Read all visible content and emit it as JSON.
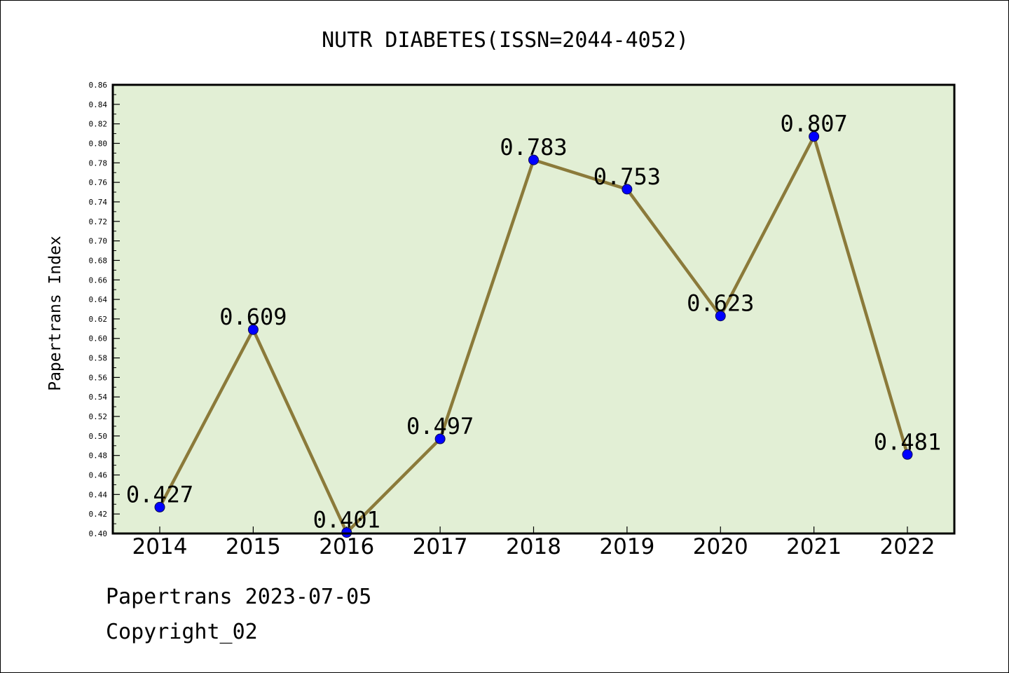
{
  "chart_data": {
    "type": "line",
    "title": "NUTR DIABETES(ISSN=2044-4052)",
    "xlabel": "",
    "ylabel": "Papertrans Index",
    "x": [
      "2014",
      "2015",
      "2016",
      "2017",
      "2018",
      "2019",
      "2020",
      "2021",
      "2022"
    ],
    "series": [
      {
        "values": [
          0.427,
          0.609,
          0.401,
          0.497,
          0.783,
          0.753,
          0.623,
          0.807,
          0.481
        ],
        "data_labels": [
          "0.427",
          "0.609",
          "0.401",
          "0.497",
          "0.783",
          "0.753",
          "0.623",
          "0.807",
          "0.481"
        ],
        "line_color": "#8b7a3a",
        "marker_color": "#0000ff"
      }
    ],
    "ylim": [
      0.4,
      0.86
    ],
    "yticks": [
      "0.40",
      "0.42",
      "0.44",
      "0.46",
      "0.48",
      "0.50",
      "0.52",
      "0.54",
      "0.56",
      "0.58",
      "0.60",
      "0.62",
      "0.64",
      "0.66",
      "0.68",
      "0.70",
      "0.72",
      "0.74",
      "0.76",
      "0.78",
      "0.80",
      "0.82",
      "0.84",
      "0.86"
    ],
    "grid": false,
    "plot_background": "#e2efd5"
  },
  "footer": {
    "date_line": "Papertrans 2023-07-05",
    "copyright": "Copyright_02"
  }
}
